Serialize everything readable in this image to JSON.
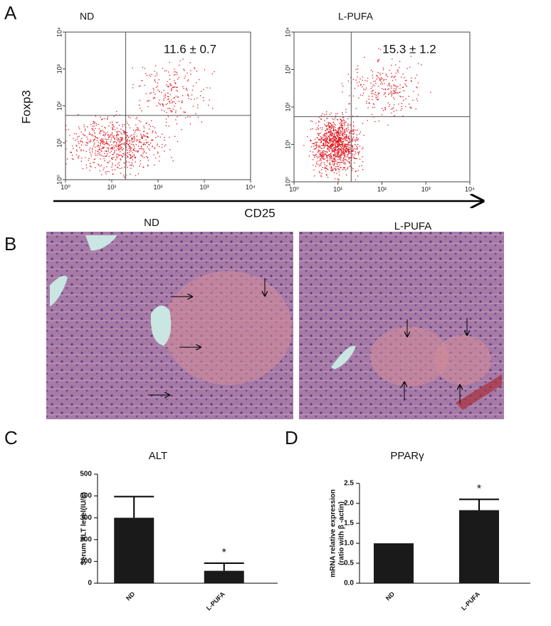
{
  "panel_labels": [
    "A",
    "B",
    "C",
    "D"
  ],
  "flow": {
    "x_label": "CD25",
    "y_label": "Foxp3",
    "xlim": [
      1,
      10000
    ],
    "ylim": [
      1,
      10000
    ],
    "ticks": [
      {
        "value": 1,
        "label": "10⁰"
      },
      {
        "value": 10,
        "label": "10¹"
      },
      {
        "value": 100,
        "label": "10²"
      },
      {
        "value": 1000,
        "label": "10³"
      },
      {
        "value": 10000,
        "label": "10⁴"
      }
    ],
    "plots": [
      {
        "title": "ND",
        "annotation": "11.6 ± 0.7",
        "gate_x": 20,
        "gate_y": 55
      },
      {
        "title": "L-PUFA",
        "annotation": "15.3 ± 1.2",
        "gate_x": 20,
        "gate_y": 55
      }
    ]
  },
  "histology": {
    "titles": [
      "ND",
      "L-PUFA"
    ]
  },
  "chart_data": [
    {
      "type": "bar",
      "title": "ALT",
      "y_label": [
        "Serum ALT level(IU/L)"
      ],
      "categories": [
        "ND",
        "L-PUFA"
      ],
      "values": [
        300,
        57
      ],
      "errors": [
        97,
        35
      ],
      "color": "#1a1a1a",
      "ylim": [
        0,
        500
      ],
      "yticks": [
        0,
        100,
        200,
        300,
        400,
        500
      ],
      "annotations": [
        null,
        "*"
      ]
    },
    {
      "type": "bar",
      "title": "PPARγ",
      "y_label": [
        "mRNA relative expression",
        "(ratio with β -actin)"
      ],
      "categories": [
        "ND",
        "L-PUFA"
      ],
      "values": [
        1.0,
        1.83
      ],
      "errors": [
        0,
        0.27
      ],
      "color": "#1a1a1a",
      "ylim": [
        0,
        2.5
      ],
      "yticks": [
        {
          "value": 0,
          "label": "0.0"
        },
        {
          "value": 0.5,
          "label": "0.5"
        },
        {
          "value": 1,
          "label": "1.0"
        },
        {
          "value": 1.5,
          "label": "1.5"
        },
        {
          "value": 2,
          "label": "2.0"
        },
        {
          "value": 2.5,
          "label": "2.5"
        }
      ],
      "annotations": [
        null,
        "*"
      ]
    }
  ]
}
